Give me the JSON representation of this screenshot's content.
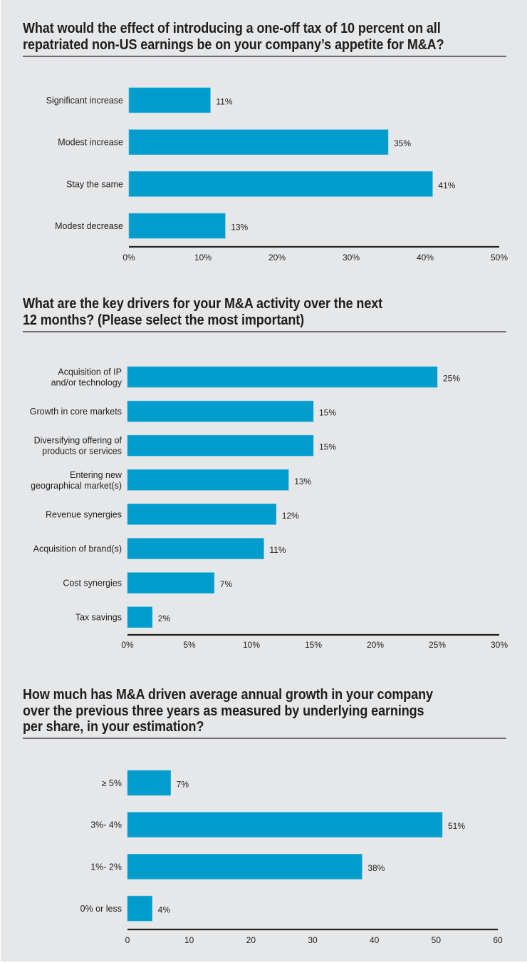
{
  "colors": {
    "background": "#e6e7e9",
    "bar": "#009ccc",
    "axis": "#222222",
    "rule": "#6f6f72",
    "text": "#222222"
  },
  "chart_data": [
    {
      "type": "bar",
      "orientation": "horizontal",
      "title": "What would the effect of introducing a one-off tax of 10 percent on all\nrepatriated non-US earnings be on your company’s appetite for M&A?",
      "categories": [
        "Significant increase",
        "Modest increase",
        "Stay the same",
        "Modest decrease"
      ],
      "values": [
        11,
        35,
        41,
        13
      ],
      "value_labels": [
        "11%",
        "35%",
        "41%",
        "13%"
      ],
      "xlim": [
        0,
        50
      ],
      "xticks": [
        0,
        10,
        20,
        30,
        40,
        50
      ],
      "xtick_labels": [
        "0%",
        "10%",
        "20%",
        "30%",
        "40%",
        "50%"
      ],
      "xlabel": "",
      "ylabel": "",
      "grid": false,
      "legend": "none"
    },
    {
      "type": "bar",
      "orientation": "horizontal",
      "title": "What are the key drivers for your M&A activity over the next\n12 months? (Please select the most important)",
      "categories": [
        "Acquisition of IP\nand/or technology",
        "Growth in core markets",
        "Diversifying offering of\nproducts or services",
        "Entering new\ngeographical market(s)",
        "Revenue synergies",
        "Acquisition of brand(s)",
        "Cost synergies",
        "Tax savings"
      ],
      "values": [
        25,
        15,
        15,
        13,
        12,
        11,
        7,
        2
      ],
      "value_labels": [
        "25%",
        "15%",
        "15%",
        "13%",
        "12%",
        "11%",
        "7%",
        "2%"
      ],
      "xlim": [
        0,
        30
      ],
      "xticks": [
        0,
        5,
        10,
        15,
        20,
        25,
        30
      ],
      "xtick_labels": [
        "0%",
        "5%",
        "10%",
        "15%",
        "20%",
        "25%",
        "30%"
      ],
      "xlabel": "",
      "ylabel": "",
      "grid": false,
      "legend": "none"
    },
    {
      "type": "bar",
      "orientation": "horizontal",
      "title": "How much has M&A driven average annual growth in your company\nover the previous three years as measured by underlying earnings\nper share, in your estimation?",
      "categories": [
        "≥ 5%",
        "3%- 4%",
        "1%- 2%",
        "0% or less"
      ],
      "values": [
        7,
        51,
        38,
        4
      ],
      "value_labels": [
        "7%",
        "51%",
        "38%",
        "4%"
      ],
      "xlim": [
        0,
        60
      ],
      "xticks": [
        0,
        10,
        20,
        30,
        40,
        50,
        60
      ],
      "xtick_labels": [
        "0",
        "10",
        "20",
        "30",
        "40",
        "50",
        "60"
      ],
      "xlabel": "",
      "ylabel": "",
      "grid": false,
      "legend": "none"
    }
  ]
}
